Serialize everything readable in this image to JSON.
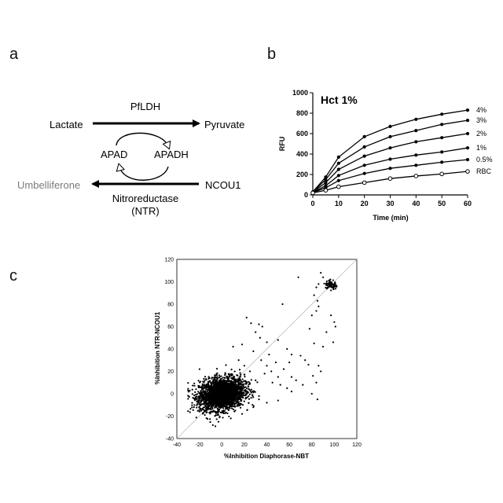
{
  "panels": {
    "a": {
      "letter": "a"
    },
    "b": {
      "letter": "b"
    },
    "c": {
      "letter": "c"
    }
  },
  "pathway": {
    "enzyme_top": "PfLDH",
    "substrate": "Lactate",
    "product": "Pyruvate",
    "cofactor_ox": "APAD",
    "cofactor_red": "APADH",
    "probe": "NCOU1",
    "fluor_product": "Umbelliferone",
    "enzyme_bottom_line1": "Nitroreductase",
    "enzyme_bottom_line2": "(NTR)",
    "fluor_color": "#7a7a7a"
  },
  "chart_data": [
    {
      "type": "line",
      "title": "Hct 1%",
      "xlabel": "Time (min)",
      "ylabel": "RFU",
      "xlim": [
        0,
        60
      ],
      "ylim": [
        0,
        1000
      ],
      "xticks": [
        0,
        10,
        20,
        30,
        40,
        50,
        60
      ],
      "yticks": [
        0,
        200,
        400,
        600,
        800,
        1000
      ],
      "x": [
        0,
        5,
        10,
        20,
        30,
        40,
        50,
        60
      ],
      "series": [
        {
          "name": "4%",
          "values": [
            30,
            175,
            370,
            570,
            670,
            740,
            790,
            830
          ],
          "marker": "filled"
        },
        {
          "name": "3%",
          "values": [
            28,
            150,
            310,
            470,
            570,
            630,
            690,
            730
          ],
          "marker": "filled"
        },
        {
          "name": "2%",
          "values": [
            26,
            120,
            250,
            380,
            460,
            520,
            560,
            600
          ],
          "marker": "filled"
        },
        {
          "name": "1%",
          "values": [
            24,
            90,
            190,
            290,
            350,
            390,
            420,
            460
          ],
          "marker": "filled"
        },
        {
          "name": "0.5%",
          "values": [
            22,
            70,
            140,
            210,
            260,
            290,
            320,
            345
          ],
          "marker": "filled"
        },
        {
          "name": "RBC",
          "values": [
            20,
            45,
            80,
            120,
            160,
            185,
            205,
            230
          ],
          "marker": "open"
        }
      ],
      "grid": false,
      "legend": "right end labels"
    },
    {
      "type": "scatter",
      "title": "",
      "xlabel": "%Inhibition Diaphorase-NBT",
      "ylabel": "%Inhibition NTR-NCOU1",
      "xlim": [
        -40,
        120
      ],
      "ylim": [
        -40,
        120
      ],
      "xticks": [
        -40,
        -20,
        0,
        20,
        40,
        60,
        80,
        100,
        120
      ],
      "yticks": [
        -40,
        -20,
        0,
        20,
        40,
        60,
        80,
        100,
        120
      ],
      "identity_line": true,
      "cluster": {
        "center_x": 0,
        "center_y": 0,
        "spread_x": 10,
        "spread_y": 7,
        "count": 2600
      },
      "points": [
        [
          68,
          104
        ],
        [
          88,
          108
        ],
        [
          90,
          104
        ],
        [
          86,
          98
        ],
        [
          84,
          95
        ],
        [
          82,
          88
        ],
        [
          85,
          83
        ],
        [
          86,
          78
        ],
        [
          84,
          74
        ],
        [
          80,
          70
        ],
        [
          78,
          58
        ],
        [
          82,
          45
        ],
        [
          90,
          42
        ],
        [
          99,
          46
        ],
        [
          93,
          55
        ],
        [
          97,
          70
        ],
        [
          100,
          64
        ],
        [
          101,
          60
        ],
        [
          54,
          80
        ],
        [
          22,
          68
        ],
        [
          26,
          63
        ],
        [
          33,
          62
        ],
        [
          36,
          60
        ],
        [
          30,
          55
        ],
        [
          34,
          50
        ],
        [
          40,
          46
        ],
        [
          50,
          48
        ],
        [
          18,
          44
        ],
        [
          10,
          42
        ],
        [
          28,
          38
        ],
        [
          58,
          40
        ],
        [
          62,
          35
        ],
        [
          70,
          34
        ],
        [
          74,
          30
        ],
        [
          77,
          26
        ],
        [
          86,
          25
        ],
        [
          88,
          20
        ],
        [
          81,
          16
        ],
        [
          66,
          12
        ],
        [
          62,
          15
        ],
        [
          72,
          8
        ],
        [
          50,
          15
        ],
        [
          44,
          20
        ],
        [
          40,
          25
        ],
        [
          35,
          30
        ],
        [
          48,
          28
        ],
        [
          55,
          22
        ],
        [
          38,
          18
        ],
        [
          45,
          10
        ],
        [
          52,
          8
        ],
        [
          58,
          5
        ],
        [
          62,
          2
        ],
        [
          30,
          12
        ],
        [
          25,
          20
        ],
        [
          20,
          25
        ],
        [
          15,
          30
        ],
        [
          33,
          -5
        ],
        [
          40,
          -8
        ],
        [
          50,
          -6
        ],
        [
          28,
          -12
        ],
        [
          18,
          -18
        ],
        [
          8,
          -22
        ],
        [
          -8,
          -28
        ],
        [
          -3,
          -25
        ],
        [
          12,
          -15
        ],
        [
          85,
          -5
        ],
        [
          84,
          10
        ],
        [
          80,
          0
        ],
        [
          42,
          35
        ],
        [
          60,
          28
        ]
      ],
      "top_cluster": {
        "center_x": 97,
        "center_y": 97,
        "count": 70
      }
    }
  ]
}
